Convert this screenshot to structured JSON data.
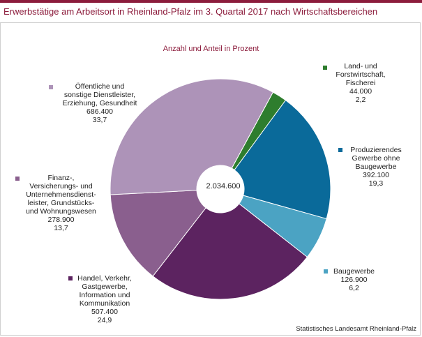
{
  "title": "Erwerbstätige am Arbeitsort in Rheinland-Pfalz  im 3. Quartal 2017 nach Wirtschaftsbereichen",
  "source": "Statistisches Landesamt Rheinland-Pfalz",
  "chart_data": {
    "type": "pie",
    "subtitle": "Anzahl und Anteil in Prozent",
    "center_label": "2.034.600",
    "total": 2034600,
    "slices": [
      {
        "label_lines": [
          "Land- und",
          "Forstwirtschaft,",
          "Fischerei"
        ],
        "value": 44000,
        "value_label": "44.000",
        "percent": 2.2,
        "percent_label": "2,2",
        "color": "#2e7d2e"
      },
      {
        "label_lines": [
          "Produzierendes",
          "Gewerbe ohne",
          "Baugewerbe"
        ],
        "value": 392100,
        "value_label": "392.100",
        "percent": 19.3,
        "percent_label": "19,3",
        "color": "#0a6a9a"
      },
      {
        "label_lines": [
          "Baugewerbe"
        ],
        "value": 126900,
        "value_label": "126.900",
        "percent": 6.2,
        "percent_label": "6,2",
        "color": "#4ba3c3"
      },
      {
        "label_lines": [
          "Handel, Verkehr,",
          "Gastgewerbe,",
          "Information und",
          "Kommunikation"
        ],
        "value": 507400,
        "value_label": "507.400",
        "percent": 24.9,
        "percent_label": "24,9",
        "color": "#5c2360"
      },
      {
        "label_lines": [
          "Finanz-,",
          "Versicherungs- und",
          "Unternehmensdienst-",
          "leister, Grundstücks-",
          "und Wohnungswesen"
        ],
        "value": 278900,
        "value_label": "278.900",
        "percent": 13.7,
        "percent_label": "13,7",
        "color": "#8a5f8e"
      },
      {
        "label_lines": [
          "Öffentliche und",
          "sonstige Dienstleister,",
          "Erziehung, Gesundheit"
        ],
        "value": 686400,
        "value_label": "686.400",
        "percent": 33.7,
        "percent_label": "33,7",
        "color": "#ad93b8"
      }
    ]
  }
}
